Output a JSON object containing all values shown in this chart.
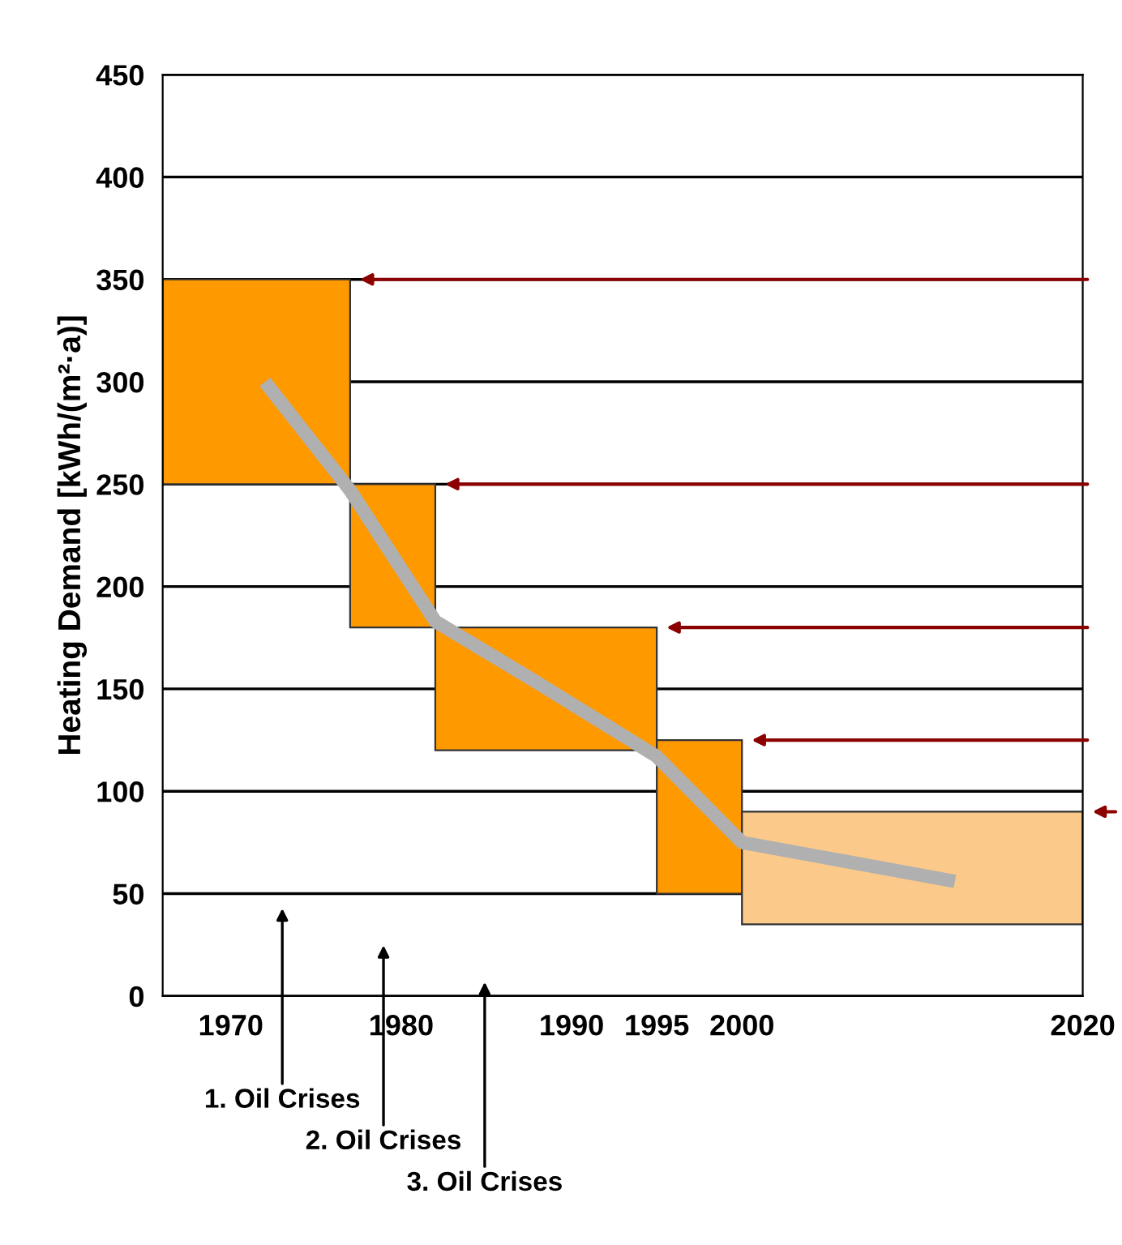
{
  "chart_data": {
    "type": "bar",
    "ylabel": "Heating Demand [kWh/(m²·a)]",
    "x": [
      1971.5,
      1979.5,
      1988.5,
      1997.5,
      2010
    ],
    "base": [
      250,
      180,
      120,
      50,
      35
    ],
    "values": [
      100,
      70,
      60,
      75,
      55
    ],
    "colors": [
      "#ff9900",
      "#ff9900",
      "#ff9900",
      "#ff9900",
      "#fbc98a"
    ],
    "series": [
      {
        "type": "line",
        "color": "#b0b0b0",
        "x": [
          1972,
          1977,
          1982,
          1988,
          1995,
          2000,
          2012.5
        ],
        "values": [
          300,
          247,
          183,
          153,
          117,
          75,
          56
        ]
      }
    ],
    "xlim": [
      1966,
      2020
    ],
    "xticks": [
      1970,
      1980,
      1990,
      1995,
      2000,
      2020
    ],
    "ylim": [
      0,
      450
    ],
    "yticks": [
      0,
      50,
      100,
      150,
      200,
      250,
      300,
      350,
      400,
      450
    ],
    "grid": "y",
    "annotations": [
      "1. Oil Crises",
      "2. Oil Crises",
      "3. Oil Crises"
    ]
  }
}
